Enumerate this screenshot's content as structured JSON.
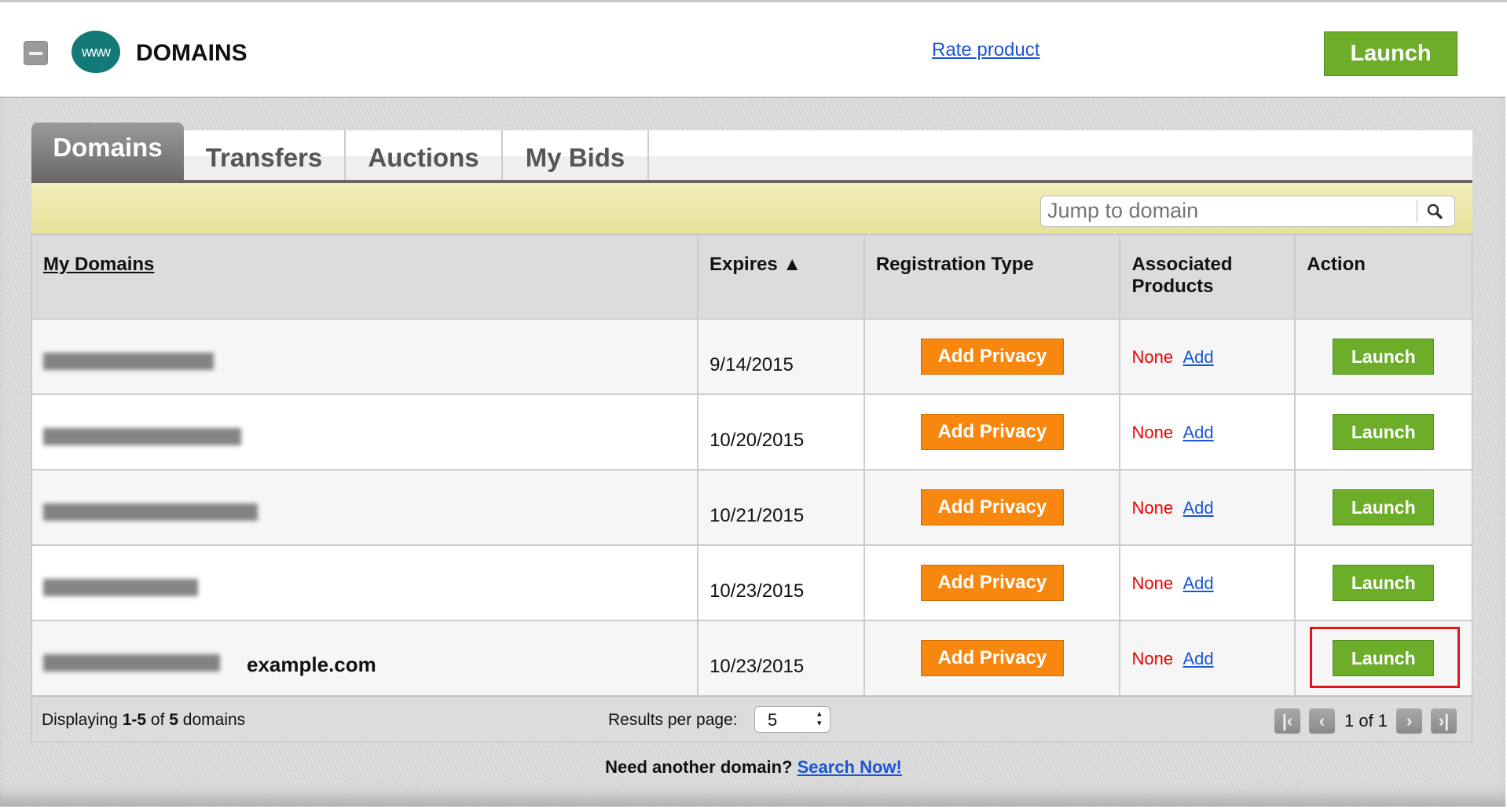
{
  "header": {
    "title": "DOMAINS",
    "logo_text": "www",
    "rate_link": "Rate product",
    "launch": "Launch"
  },
  "tabs": [
    {
      "label": "Domains",
      "active": true
    },
    {
      "label": "Transfers"
    },
    {
      "label": "Auctions"
    },
    {
      "label": "My Bids"
    }
  ],
  "search": {
    "placeholder": "Jump to domain"
  },
  "table": {
    "columns": [
      "My Domains",
      "Expires ▲",
      "Registration Type",
      "Associated Products",
      "Action"
    ],
    "rows": [
      {
        "expires": "9/14/2015",
        "privacy": "Add Privacy",
        "products": "None",
        "add": "Add",
        "action": "Launch"
      },
      {
        "expires": "10/20/2015",
        "privacy": "Add Privacy",
        "products": "None",
        "add": "Add",
        "action": "Launch"
      },
      {
        "expires": "10/21/2015",
        "privacy": "Add Privacy",
        "products": "None",
        "add": "Add",
        "action": "Launch"
      },
      {
        "expires": "10/23/2015",
        "privacy": "Add Privacy",
        "products": "None",
        "add": "Add",
        "action": "Launch"
      },
      {
        "expires": "10/23/2015",
        "privacy": "Add Privacy",
        "products": "None",
        "add": "Add",
        "action": "Launch",
        "annotation": "example.com"
      }
    ]
  },
  "footer": {
    "displaying_prefix": "Displaying ",
    "range": "1-5",
    "of": " of ",
    "total": "5",
    "suffix": " domains",
    "results_label": "Results per page:",
    "per_page": "5",
    "page_info": "1 of 1"
  },
  "bottom": {
    "text": "Need another domain? ",
    "link": "Search Now!"
  },
  "colors": {
    "launch": "#6cae2a",
    "privacy": "#f7870e",
    "highlight": "#e4141c",
    "link": "#1a55d6"
  }
}
